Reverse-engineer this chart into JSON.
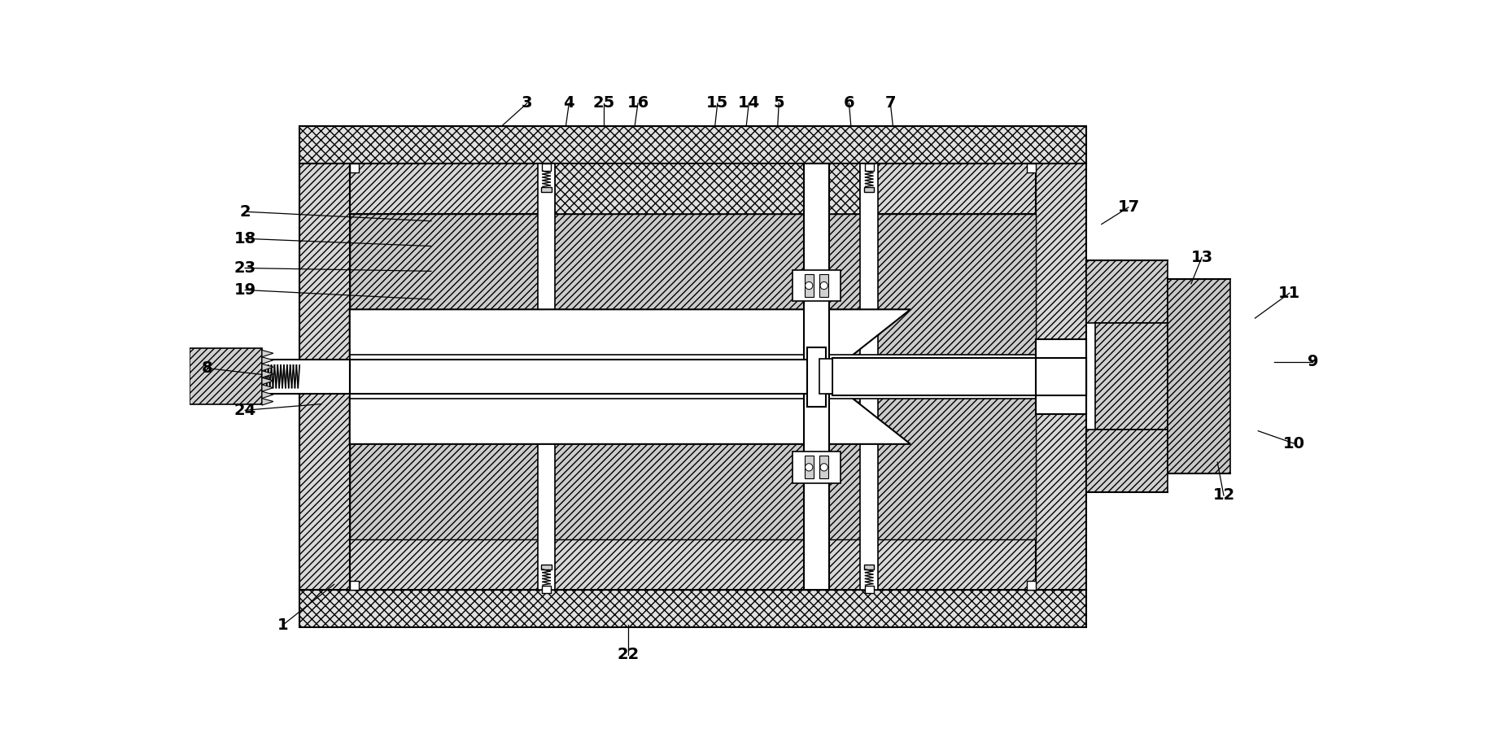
{
  "bg_color": "#ffffff",
  "labels": [
    [
      "1",
      148,
      855,
      230,
      790
    ],
    [
      "2",
      88,
      195,
      385,
      210
    ],
    [
      "3",
      538,
      22,
      498,
      58
    ],
    [
      "4",
      605,
      22,
      600,
      58
    ],
    [
      "25",
      660,
      22,
      660,
      58
    ],
    [
      "16",
      715,
      22,
      710,
      58
    ],
    [
      "15",
      842,
      22,
      838,
      58
    ],
    [
      "14",
      892,
      22,
      888,
      58
    ],
    [
      "5",
      940,
      22,
      938,
      58
    ],
    [
      "6",
      1052,
      22,
      1055,
      58
    ],
    [
      "7",
      1118,
      22,
      1122,
      58
    ],
    [
      "8",
      28,
      445,
      115,
      455
    ],
    [
      "9",
      1792,
      435,
      1730,
      435
    ],
    [
      "10",
      1762,
      565,
      1705,
      545
    ],
    [
      "11",
      1755,
      325,
      1700,
      365
    ],
    [
      "12",
      1650,
      648,
      1640,
      595
    ],
    [
      "13",
      1615,
      268,
      1598,
      310
    ],
    [
      "17",
      1498,
      188,
      1455,
      215
    ],
    [
      "18",
      88,
      238,
      385,
      250
    ],
    [
      "19",
      88,
      320,
      385,
      335
    ],
    [
      "22",
      700,
      902,
      700,
      855
    ],
    [
      "23",
      88,
      285,
      385,
      290
    ],
    [
      "24",
      88,
      512,
      210,
      502
    ]
  ]
}
